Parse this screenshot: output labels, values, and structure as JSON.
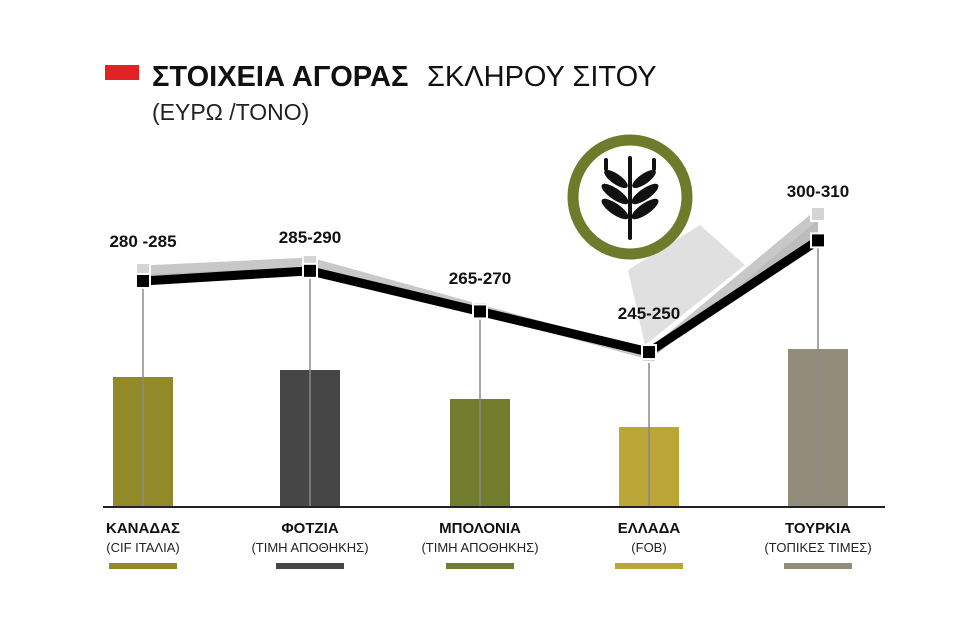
{
  "header": {
    "title_bold": "ΣΤΟΙΧΕΙΑ ΑΓΟΡΑΣ",
    "title_light": "ΣΚΛΗΡΟΥ ΣΙΤΟΥ",
    "subtitle": "(ΕΥΡΩ /ΤΟΝΟ)",
    "marker_color": "#e32226"
  },
  "emblem": {
    "icon": "wheat-icon",
    "ring_color": "#6e7b2b"
  },
  "chart_data": {
    "type": "line",
    "categories": [
      "ΚΑΝΑΔΑΣ",
      "ΦΟΤΖΙΑ",
      "ΜΠΟΛΟΝΙΑ",
      "ΕΛΛΑΔΑ",
      "ΤΟΥΡΚΙΑ"
    ],
    "category_notes": [
      "(CIF ΙΤΑΛΙΑ)",
      "(ΤΙΜΗ ΑΠΟΘΗΚΗΣ)",
      "(ΤΙΜΗ ΑΠΟΘΗΚΗΣ)",
      "(FOB)",
      "(ΤΟΠΙΚΕΣ ΤΙΜΕΣ)"
    ],
    "range_labels": [
      "280 -285",
      "285-290",
      "265-270",
      "245-250",
      "300-310"
    ],
    "series": [
      {
        "values": [
          285,
          290,
          270,
          250,
          310
        ],
        "color": "#c8c8c8"
      },
      {
        "values": [
          280,
          285,
          265,
          245,
          300
        ],
        "color": "#000000"
      }
    ],
    "bar_colors": [
      "#928929",
      "#464646",
      "#727d2e",
      "#bba738",
      "#928d7a"
    ],
    "grid": false,
    "legend": "none"
  }
}
